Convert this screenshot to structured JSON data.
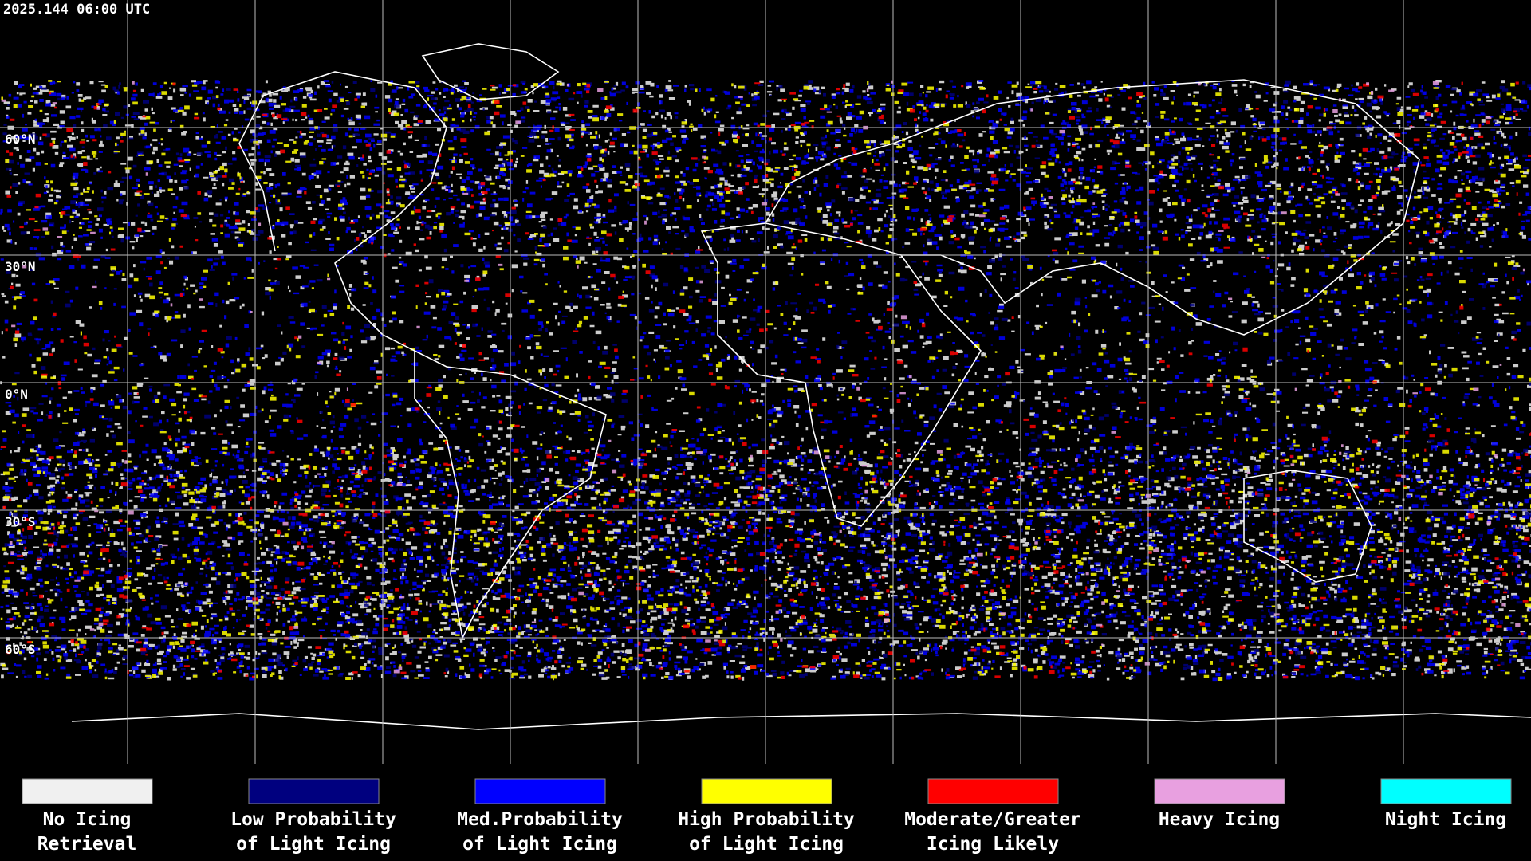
{
  "header": {
    "timestamp": "2025.144 06:00 UTC"
  },
  "map": {
    "latitude_labels": [
      "60°N",
      "30°N",
      "0°N",
      "30°S",
      "60°S"
    ]
  },
  "legend": {
    "items": [
      {
        "lines": [
          "No Icing",
          "Retrieval"
        ],
        "color": "#f0f0f0"
      },
      {
        "lines": [
          "Low Probability",
          "of Light Icing"
        ],
        "color": "#00007f"
      },
      {
        "lines": [
          "Med.Probability",
          "of Light Icing"
        ],
        "color": "#0000ff"
      },
      {
        "lines": [
          "High Probability",
          "of Light Icing"
        ],
        "color": "#ffff00"
      },
      {
        "lines": [
          "Moderate/Greater",
          "Icing Likely"
        ],
        "color": "#ff0000"
      },
      {
        "lines": [
          "Heavy Icing"
        ],
        "color": "#e8a0e0"
      },
      {
        "lines": [
          "Night Icing"
        ],
        "color": "#00ffff"
      }
    ]
  }
}
